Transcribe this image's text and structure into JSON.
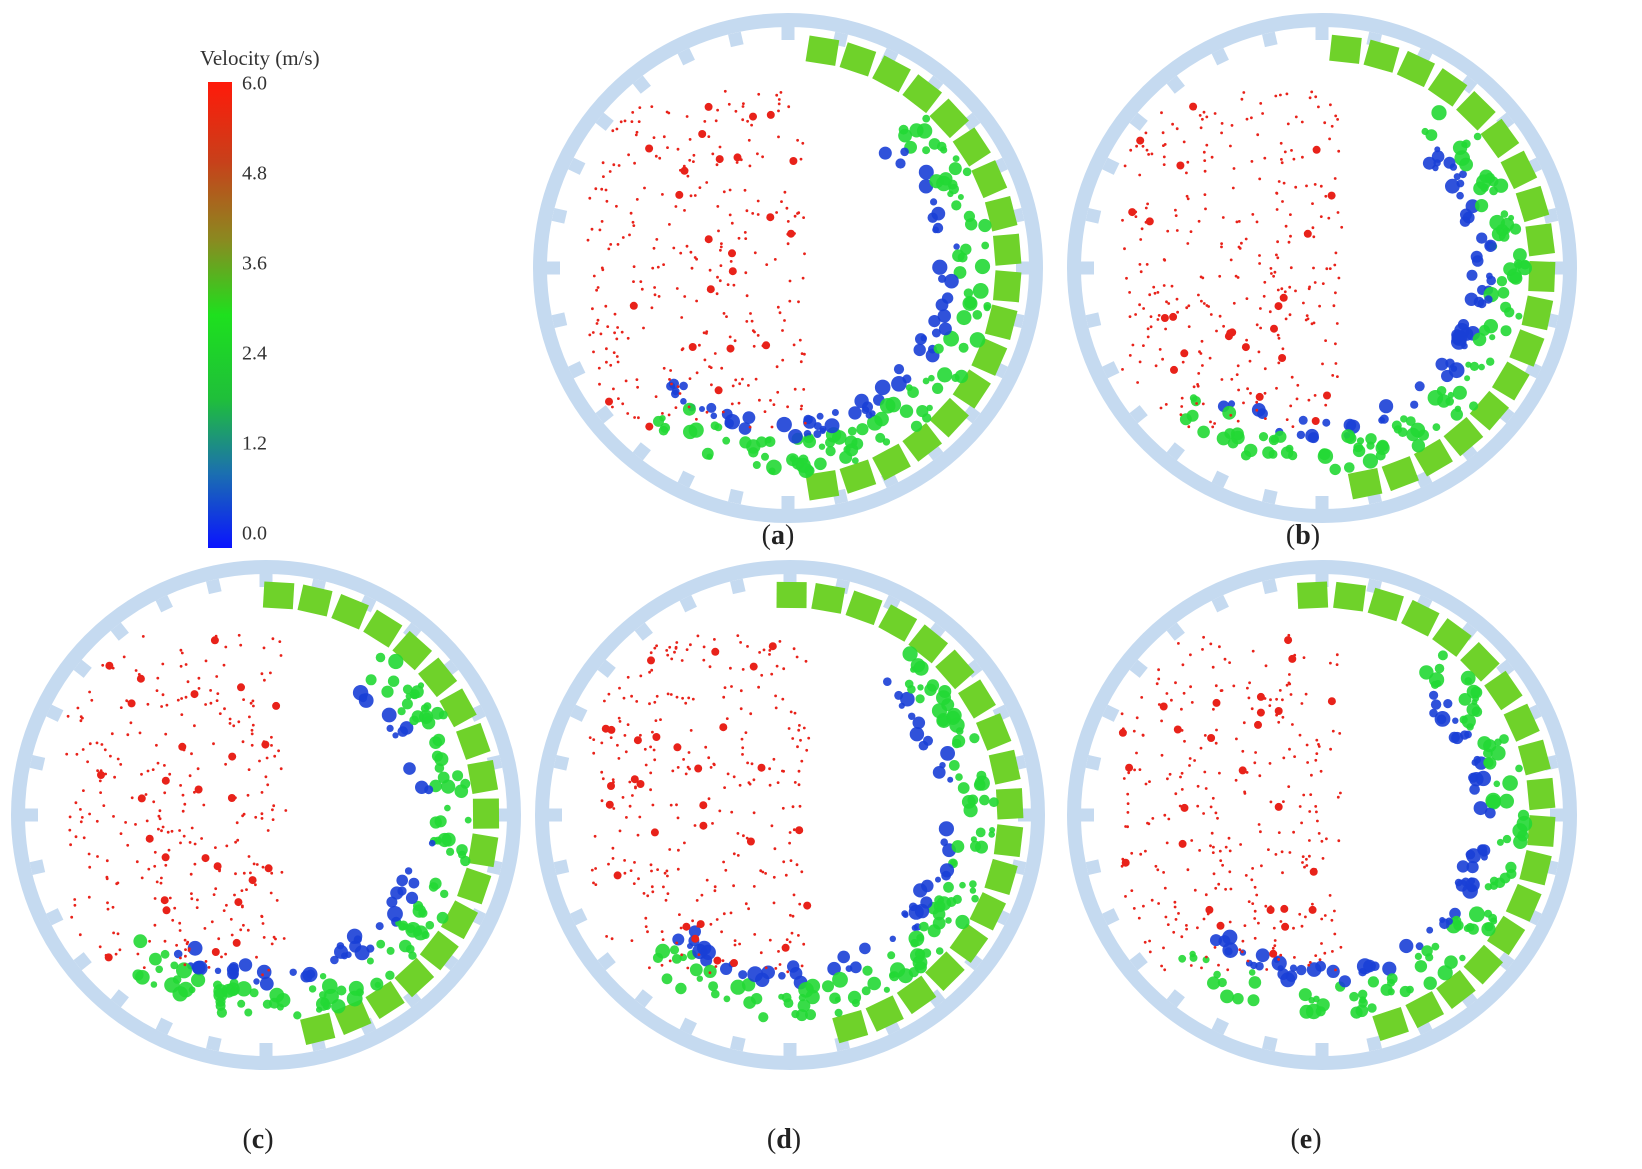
{
  "legend": {
    "title": "Velocity (m/s)",
    "ticks": [
      "6.0",
      "4.8",
      "3.6",
      "2.4",
      "1.2",
      "0.0"
    ],
    "colors": {
      "high": "#ff1a0a",
      "mid": "#1ee01e",
      "low": "#0a14ff"
    }
  },
  "panels": [
    {
      "id": "a",
      "open": "(",
      "letter": "a",
      "close": ")"
    },
    {
      "id": "b",
      "open": "(",
      "letter": "b",
      "close": ")"
    },
    {
      "id": "c",
      "open": "(",
      "letter": "c",
      "close": ")"
    },
    {
      "id": "d",
      "open": "(",
      "letter": "d",
      "close": ")"
    },
    {
      "id": "e",
      "open": "(",
      "letter": "e",
      "close": ")"
    }
  ],
  "colors": {
    "shell": "#c5daf0",
    "liner": "#6fd22a",
    "particle_red": "#e8221a",
    "particle_green": "#22d834",
    "particle_blue": "#1a3fd6"
  }
}
